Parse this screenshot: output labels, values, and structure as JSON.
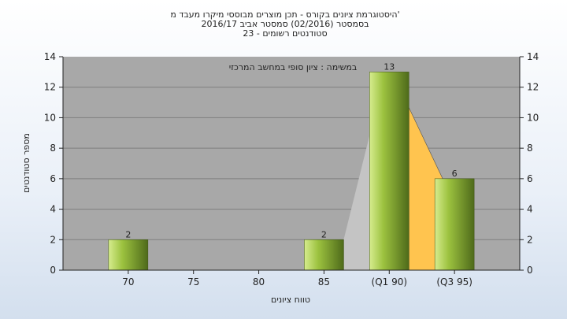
{
  "chart_data": {
    "type": "bar",
    "title": [
      "היסטוגרמת ציונים בקורס - תכן מוצרים מבוססי מיקרו מעבד מ'",
      "בסמסטר  (02/2016)  סמסטר אביב 2016/17",
      "סטודנטים רשומים - 23"
    ],
    "annotation": "במשימה : ציון סופי במחשב המרכזי",
    "xlabel": "טווח ציונים",
    "ylabel": "מספר סטודנטים",
    "categories": [
      "70",
      "75",
      "80",
      "85",
      "(Q1 90)",
      "(Q3 95)"
    ],
    "values": [
      2,
      0,
      0,
      2,
      13,
      6
    ],
    "data_labels": [
      "2",
      "",
      "",
      "2",
      "13",
      "6"
    ],
    "ylim": [
      0,
      14
    ],
    "yticks": [
      "0",
      "2",
      "4",
      "6",
      "8",
      "10",
      "12",
      "14"
    ],
    "grid": true,
    "colors": {
      "plot_bg": "#a8a8a8",
      "grid": "#7f7f7f",
      "bar_light": "#d6ec8e",
      "bar_mid": "#9cc23f",
      "bar_dark": "#4e6a1a",
      "fill_gray": "#c4c4c4",
      "fill_orange": "#ffc44f",
      "outline": "#555555"
    }
  }
}
